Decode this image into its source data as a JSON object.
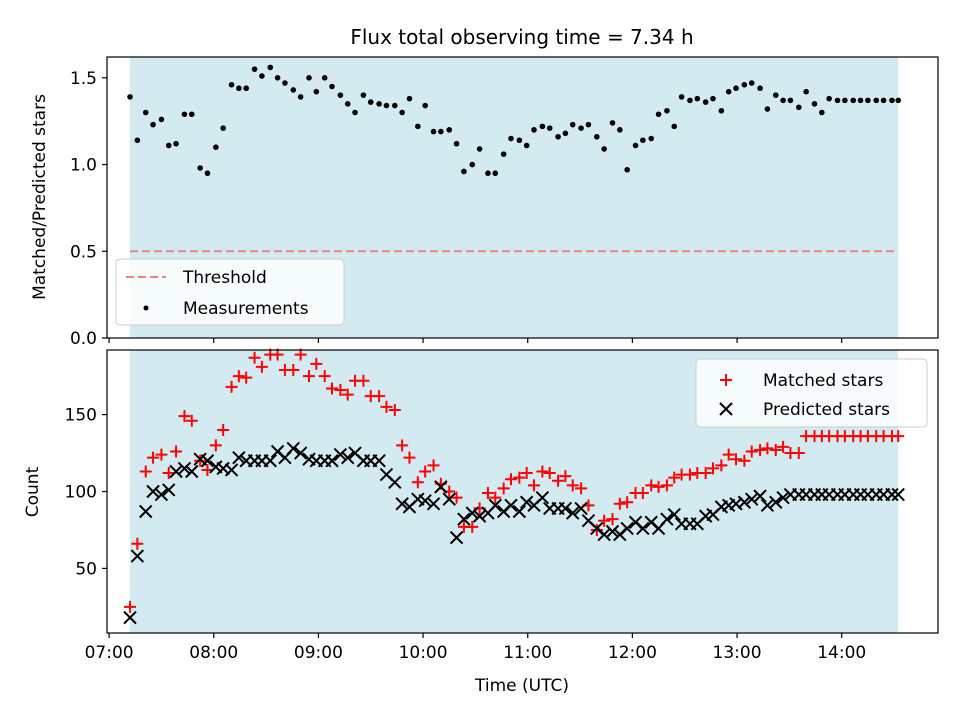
{
  "figure": {
    "title": "Flux total observing time = 7.34 h",
    "xlabel": "Time (UTC)",
    "xticks": [
      "07:00",
      "08:00",
      "09:00",
      "10:00",
      "11:00",
      "12:00",
      "13:00",
      "14:00"
    ]
  },
  "colors": {
    "span_fill": "#d3eaf0",
    "threshold": "#f08080",
    "measurement": "#000000",
    "matched": "#ff0000",
    "predicted": "#000000"
  },
  "chart_data": [
    {
      "type": "scatter",
      "ylabel": "Matched/Predicted stars",
      "xlim": [
        6.98,
        14.92
      ],
      "ylim": [
        0,
        1.62
      ],
      "yticks": [
        "0.0",
        "0.5",
        "1.0",
        "1.5"
      ],
      "span": [
        7.2,
        14.54
      ],
      "threshold": {
        "name": "Threshold",
        "value": 0.5,
        "x": [
          7.2,
          14.54
        ]
      },
      "legend": {
        "placement": "lower-left",
        "entries": [
          "Threshold",
          "Measurements"
        ]
      },
      "series": [
        {
          "name": "Measurements",
          "marker": "dot",
          "x": [
            7.2,
            7.27,
            7.35,
            7.42,
            7.5,
            7.57,
            7.64,
            7.72,
            7.79,
            7.87,
            7.94,
            8.02,
            8.09,
            8.17,
            8.24,
            8.31,
            8.39,
            8.46,
            8.54,
            8.61,
            8.68,
            8.76,
            8.83,
            8.91,
            8.98,
            9.06,
            9.13,
            9.21,
            9.28,
            9.35,
            9.43,
            9.5,
            9.58,
            9.65,
            9.73,
            9.8,
            9.87,
            9.95,
            10.02,
            10.1,
            10.17,
            10.25,
            10.32,
            10.39,
            10.47,
            10.54,
            10.62,
            10.69,
            10.77,
            10.84,
            10.92,
            10.99,
            11.06,
            11.14,
            11.21,
            11.29,
            11.36,
            11.43,
            11.51,
            11.58,
            11.66,
            11.73,
            11.81,
            11.88,
            11.95,
            12.03,
            12.1,
            12.18,
            12.25,
            12.33,
            12.4,
            12.47,
            12.55,
            12.62,
            12.7,
            12.77,
            12.85,
            12.92,
            12.99,
            13.07,
            13.14,
            13.22,
            13.29,
            13.37,
            13.44,
            13.51,
            13.59,
            13.66,
            13.74,
            13.81,
            13.88,
            13.96,
            14.03,
            14.11,
            14.18,
            14.25,
            14.33,
            14.4,
            14.48,
            14.54
          ],
          "y": [
            1.39,
            1.14,
            1.3,
            1.23,
            1.26,
            1.11,
            1.12,
            1.29,
            1.29,
            0.98,
            0.95,
            1.1,
            1.21,
            1.46,
            1.44,
            1.44,
            1.55,
            1.51,
            1.56,
            1.5,
            1.47,
            1.43,
            1.39,
            1.5,
            1.42,
            1.5,
            1.45,
            1.4,
            1.35,
            1.3,
            1.4,
            1.36,
            1.35,
            1.34,
            1.34,
            1.3,
            1.38,
            1.22,
            1.34,
            1.19,
            1.19,
            1.2,
            1.12,
            0.96,
            1.0,
            1.09,
            0.95,
            0.95,
            1.06,
            1.15,
            1.14,
            1.11,
            1.2,
            1.22,
            1.21,
            1.16,
            1.18,
            1.23,
            1.21,
            1.23,
            1.16,
            1.09,
            1.24,
            1.2,
            0.97,
            1.11,
            1.14,
            1.15,
            1.29,
            1.31,
            1.22,
            1.39,
            1.37,
            1.38,
            1.36,
            1.38,
            1.31,
            1.42,
            1.44,
            1.46,
            1.47,
            1.44,
            1.32,
            1.4,
            1.37,
            1.37,
            1.33,
            1.42,
            1.35,
            1.3,
            1.38,
            1.37,
            1.37,
            1.37,
            1.37,
            1.37,
            1.37,
            1.37,
            1.37,
            1.37
          ]
        }
      ]
    },
    {
      "type": "scatter",
      "ylabel": "Count",
      "xlim": [
        6.98,
        14.92
      ],
      "ylim": [
        8,
        192
      ],
      "yticks": [
        "50",
        "100",
        "150"
      ],
      "span": [
        7.2,
        14.54
      ],
      "legend": {
        "placement": "top-right",
        "entries": [
          "Matched stars",
          "Predicted stars"
        ]
      },
      "series": [
        {
          "name": "Matched stars",
          "marker": "plus",
          "x": [
            7.2,
            7.27,
            7.35,
            7.42,
            7.5,
            7.57,
            7.64,
            7.72,
            7.79,
            7.87,
            7.94,
            8.02,
            8.09,
            8.17,
            8.24,
            8.31,
            8.39,
            8.46,
            8.54,
            8.61,
            8.68,
            8.76,
            8.83,
            8.91,
            8.98,
            9.06,
            9.13,
            9.21,
            9.28,
            9.35,
            9.43,
            9.5,
            9.58,
            9.65,
            9.73,
            9.8,
            9.87,
            9.95,
            10.02,
            10.1,
            10.17,
            10.25,
            10.32,
            10.39,
            10.47,
            10.54,
            10.62,
            10.69,
            10.77,
            10.84,
            10.92,
            10.99,
            11.06,
            11.14,
            11.21,
            11.29,
            11.36,
            11.43,
            11.51,
            11.58,
            11.66,
            11.73,
            11.81,
            11.88,
            11.95,
            12.03,
            12.1,
            12.18,
            12.25,
            12.33,
            12.4,
            12.47,
            12.55,
            12.62,
            12.7,
            12.77,
            12.85,
            12.92,
            12.99,
            13.07,
            13.14,
            13.22,
            13.29,
            13.37,
            13.44,
            13.51,
            13.59,
            13.66,
            13.74,
            13.81,
            13.88,
            13.96,
            14.03,
            14.11,
            14.18,
            14.25,
            14.33,
            14.4,
            14.48,
            14.54
          ],
          "y": [
            25,
            66,
            113,
            122,
            124,
            112,
            126,
            149,
            146,
            120,
            114,
            130,
            140,
            168,
            175,
            174,
            187,
            181,
            189,
            189,
            179,
            179,
            189,
            175,
            183,
            175,
            167,
            166,
            163,
            172,
            172,
            162,
            162,
            155,
            153,
            130,
            122,
            106,
            113,
            117,
            105,
            100,
            96,
            77,
            77,
            89,
            99,
            96,
            102,
            108,
            109,
            112,
            104,
            113,
            112,
            107,
            110,
            104,
            102,
            91,
            75,
            81,
            82,
            92,
            93,
            99,
            99,
            104,
            103,
            104,
            109,
            111,
            111,
            112,
            112,
            115,
            117,
            124,
            121,
            120,
            126,
            127,
            128,
            127,
            129,
            125,
            125,
            136,
            136,
            136,
            136,
            136,
            136,
            136,
            136,
            136,
            136,
            136,
            136,
            136
          ]
        },
        {
          "name": "Predicted stars",
          "marker": "x",
          "x": [
            7.2,
            7.27,
            7.35,
            7.42,
            7.5,
            7.57,
            7.64,
            7.72,
            7.79,
            7.87,
            7.94,
            8.02,
            8.09,
            8.17,
            8.24,
            8.31,
            8.39,
            8.46,
            8.54,
            8.61,
            8.68,
            8.76,
            8.83,
            8.91,
            8.98,
            9.06,
            9.13,
            9.21,
            9.28,
            9.35,
            9.43,
            9.5,
            9.58,
            9.65,
            9.73,
            9.8,
            9.87,
            9.95,
            10.02,
            10.1,
            10.17,
            10.25,
            10.32,
            10.39,
            10.47,
            10.54,
            10.62,
            10.69,
            10.77,
            10.84,
            10.92,
            10.99,
            11.06,
            11.14,
            11.21,
            11.29,
            11.36,
            11.43,
            11.51,
            11.58,
            11.66,
            11.73,
            11.81,
            11.88,
            11.95,
            12.03,
            12.1,
            12.18,
            12.25,
            12.33,
            12.4,
            12.47,
            12.55,
            12.62,
            12.7,
            12.77,
            12.85,
            12.92,
            12.99,
            13.07,
            13.14,
            13.22,
            13.29,
            13.37,
            13.44,
            13.51,
            13.59,
            13.66,
            13.74,
            13.81,
            13.88,
            13.96,
            14.03,
            14.11,
            14.18,
            14.25,
            14.33,
            14.4,
            14.48,
            14.54
          ],
          "y": [
            18,
            58,
            87,
            100,
            98,
            101,
            113,
            115,
            113,
            121,
            120,
            116,
            115,
            114,
            122,
            120,
            120,
            120,
            120,
            126,
            122,
            128,
            125,
            121,
            120,
            120,
            120,
            124,
            122,
            125,
            120,
            120,
            120,
            111,
            106,
            92,
            90,
            95,
            94,
            92,
            103,
            95,
            70,
            82,
            86,
            84,
            86,
            91,
            87,
            91,
            87,
            93,
            91,
            96,
            89,
            89,
            89,
            86,
            89,
            81,
            76,
            72,
            74,
            72,
            76,
            80,
            76,
            80,
            76,
            82,
            85,
            79,
            79,
            79,
            84,
            85,
            90,
            91,
            92,
            93,
            95,
            97,
            91,
            93,
            96,
            98,
            98,
            98,
            98,
            98,
            98,
            98,
            98,
            98,
            98,
            98,
            98,
            98,
            98,
            98
          ]
        }
      ]
    }
  ]
}
